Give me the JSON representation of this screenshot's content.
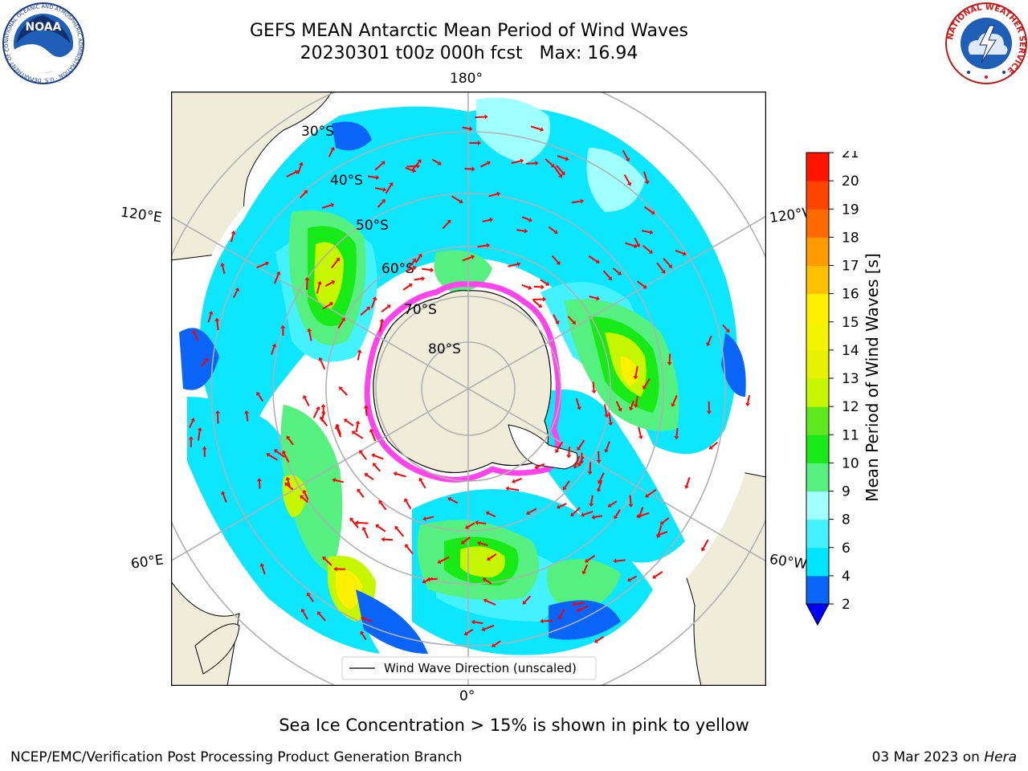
{
  "header": {
    "title_line1": "GEFS MEAN Antarctic Mean Period of Wind Waves",
    "title_line2": "20230301 t00z 000h fcst   Max: 16.94"
  },
  "logos": {
    "noaa": {
      "text": "NOAA",
      "ring_text": "NATIONAL OCEANIC AND ATMOSPHERIC ADMINISTRATION · U.S. DEPARTMENT OF COMMERCE"
    },
    "nws": {
      "ring_text": "NATIONAL WEATHER SERVICE"
    }
  },
  "map": {
    "projection": "south-polar-stereographic",
    "lon_labels": {
      "top": "180°",
      "bottom": "0°",
      "upper_left": "120°E",
      "upper_right": "120°W",
      "lower_left": "60°E",
      "lower_right": "60°W"
    },
    "lat_labels": [
      "30°S",
      "40°S",
      "50°S",
      "60°S",
      "70°S",
      "80°S"
    ],
    "legend_label": "Wind Wave Direction (unscaled)",
    "colors": {
      "land": "#efedda",
      "ocean_nodata": "#ffffff",
      "grid": "#b0b0b0",
      "arrow": "#ff0000",
      "ice": "#ff44ee"
    }
  },
  "colorbar": {
    "label": "Mean Period of Wind Waves [s]",
    "ticks": [
      "21",
      "20",
      "19",
      "18",
      "17",
      "16",
      "15",
      "14",
      "13",
      "12",
      "11",
      "10",
      "9",
      "8",
      "6",
      "4",
      "2"
    ],
    "bins": [
      {
        "from": 2,
        "to": 4,
        "color": "#0a64f8"
      },
      {
        "from": 4,
        "to": 6,
        "color": "#00e5ff"
      },
      {
        "from": 6,
        "to": 8,
        "color": "#44f2ff"
      },
      {
        "from": 8,
        "to": 9,
        "color": "#a0ffff"
      },
      {
        "from": 9,
        "to": 10,
        "color": "#55f080"
      },
      {
        "from": 10,
        "to": 11,
        "color": "#17ea17"
      },
      {
        "from": 11,
        "to": 12,
        "color": "#5fe81e"
      },
      {
        "from": 12,
        "to": 13,
        "color": "#c6f600"
      },
      {
        "from": 13,
        "to": 14,
        "color": "#e6f200"
      },
      {
        "from": 14,
        "to": 15,
        "color": "#f4f400"
      },
      {
        "from": 15,
        "to": 16,
        "color": "#fff000"
      },
      {
        "from": 16,
        "to": 17,
        "color": "#ffc000"
      },
      {
        "from": 17,
        "to": 18,
        "color": "#ff9a00"
      },
      {
        "from": 18,
        "to": 19,
        "color": "#ff6a00"
      },
      {
        "from": 19,
        "to": 20,
        "color": "#ff4400"
      },
      {
        "from": 20,
        "to": 21,
        "color": "#ff1400"
      }
    ],
    "under_color": "#0000ff"
  },
  "footer": {
    "sea_ice_note": "Sea Ice Concentration > 15% is shown in pink to yellow",
    "credit": "NCEP/EMC/Verification Post Processing Product Generation Branch",
    "date": "03 Mar 2023 on",
    "host": "Hera"
  }
}
